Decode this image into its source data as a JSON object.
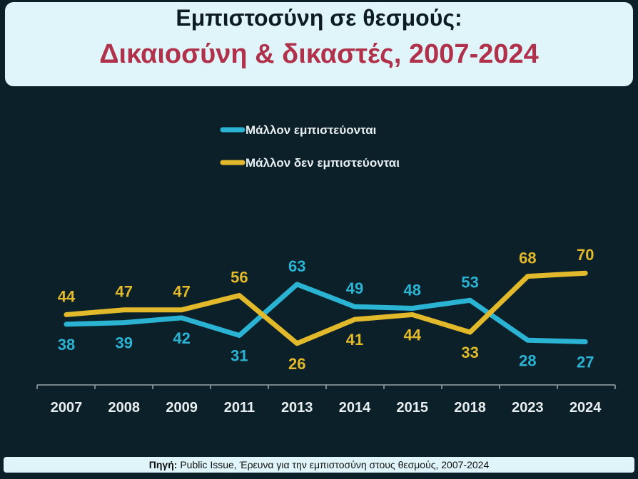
{
  "header": {
    "title": "Εμπιστοσύνη σε θεσμούς:",
    "subtitle": "Δικαιοσύνη & δικαστές, 2007-2024"
  },
  "source": {
    "label": "Πηγή:",
    "text": " Public Issue, Έρευνα για την εμπιστοσύνη στους θεσμούς, 2007-2024"
  },
  "chart_data": {
    "type": "line",
    "categories": [
      "2007",
      "2008",
      "2009",
      "2011",
      "2013",
      "2014",
      "2015",
      "2018",
      "2023",
      "2024"
    ],
    "series": [
      {
        "name": "Μάλλον εμπιστεύονται",
        "color": "#2bb3d4",
        "values": [
          38,
          39,
          42,
          31,
          63,
          49,
          48,
          53,
          28,
          27
        ]
      },
      {
        "name": "Μάλλον δεν εμπιστεύονται",
        "color": "#e2b92a",
        "values": [
          44,
          47,
          47,
          56,
          26,
          41,
          44,
          33,
          68,
          70
        ]
      }
    ],
    "legend": "top-center",
    "grid": false
  }
}
